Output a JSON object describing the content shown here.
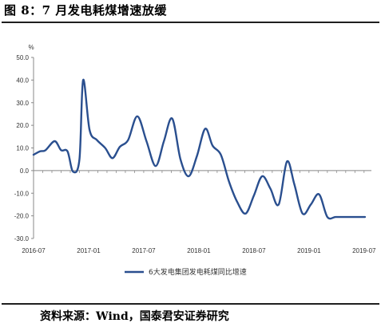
{
  "title": "图 8：7 月发电耗煤增速放缓",
  "source": "资料来源：Wind，国泰君安证券研究",
  "chart_data": {
    "type": "line",
    "unit": "%",
    "ylim": [
      -30,
      50
    ],
    "yticks": [
      "50.0",
      "40.0",
      "30.0",
      "20.0",
      "10.0",
      "0.0",
      "-10.0",
      "-20.0",
      "-30.0"
    ],
    "ytick_values": [
      50,
      40,
      30,
      20,
      10,
      0,
      -10,
      -20,
      -30
    ],
    "xtick_labels": [
      "2016-07",
      "2017-01",
      "2017-07",
      "2018-01",
      "2018-07",
      "2019-01",
      "2019-07"
    ],
    "xtick_months": [
      0,
      6,
      12,
      18,
      24,
      30,
      36
    ],
    "grid": false,
    "legend_position": "bottom",
    "color": "#2a4f8f",
    "series": [
      {
        "name": "6大发电集团发电耗煤同比增速",
        "x": [
          0,
          0.7,
          1.3,
          2.3,
          3.0,
          3.7,
          4.3,
          5.0,
          5.4,
          6.1,
          6.9,
          7.8,
          8.6,
          9.4,
          10.3,
          11.3,
          12.3,
          13.3,
          14.2,
          15.1,
          16.0,
          16.9,
          17.8,
          18.7,
          19.5,
          20.4,
          21.3,
          22.2,
          23.1,
          24.0,
          24.9,
          25.8,
          26.7,
          27.6,
          28.4,
          29.3,
          30.2,
          31.1,
          32.0,
          32.9,
          33.8,
          34.7,
          35.6,
          36.1
        ],
        "y": [
          7,
          8.5,
          9,
          13,
          9,
          8.5,
          -0.5,
          5,
          40,
          18,
          13.5,
          10,
          5.5,
          10.5,
          13.5,
          24,
          13,
          2,
          13,
          23,
          5,
          -2.5,
          6.5,
          18.5,
          11,
          7,
          -5,
          -14,
          -19,
          -11,
          -2.5,
          -8,
          -15,
          4,
          -6,
          -19,
          -15,
          -10.5,
          -20.5,
          -20.5,
          -20.5,
          -20.5,
          -20.5,
          -20.5
        ]
      }
    ]
  }
}
